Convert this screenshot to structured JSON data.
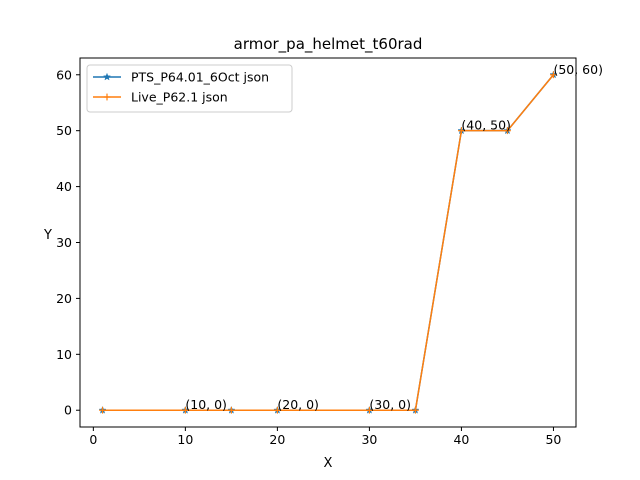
{
  "chart_data": {
    "type": "line",
    "title": "armor_pa_helmet_t60rad",
    "xlabel": "X",
    "ylabel": "Y",
    "xlim": [
      -1.45,
      52.45
    ],
    "ylim": [
      -3,
      63
    ],
    "xticks": [
      0,
      10,
      20,
      30,
      40,
      50
    ],
    "yticks": [
      0,
      10,
      20,
      30,
      40,
      50,
      60
    ],
    "grid": false,
    "legend_position": "top-left",
    "series": [
      {
        "name": "PTS_P64.01_6Oct json",
        "color": "#1f77b4",
        "marker": "star",
        "x": [
          1,
          10,
          15,
          20,
          30,
          35,
          40,
          45,
          50
        ],
        "y": [
          0,
          0,
          0,
          0,
          0,
          0,
          50,
          50,
          60
        ]
      },
      {
        "name": "Live_P62.1 json",
        "color": "#ff7f0e",
        "marker": "plus",
        "x": [
          1,
          10,
          15,
          20,
          30,
          35,
          40,
          45,
          50
        ],
        "y": [
          0,
          0,
          0,
          0,
          0,
          0,
          50,
          50,
          60
        ]
      }
    ],
    "annotations": [
      {
        "text": "(10, 0)",
        "x": 10,
        "y": 0
      },
      {
        "text": "(20, 0)",
        "x": 20,
        "y": 0
      },
      {
        "text": "(30, 0)",
        "x": 30,
        "y": 0
      },
      {
        "text": "(40, 50)",
        "x": 40,
        "y": 50
      },
      {
        "text": "(50, 60)",
        "x": 50,
        "y": 60
      }
    ]
  }
}
